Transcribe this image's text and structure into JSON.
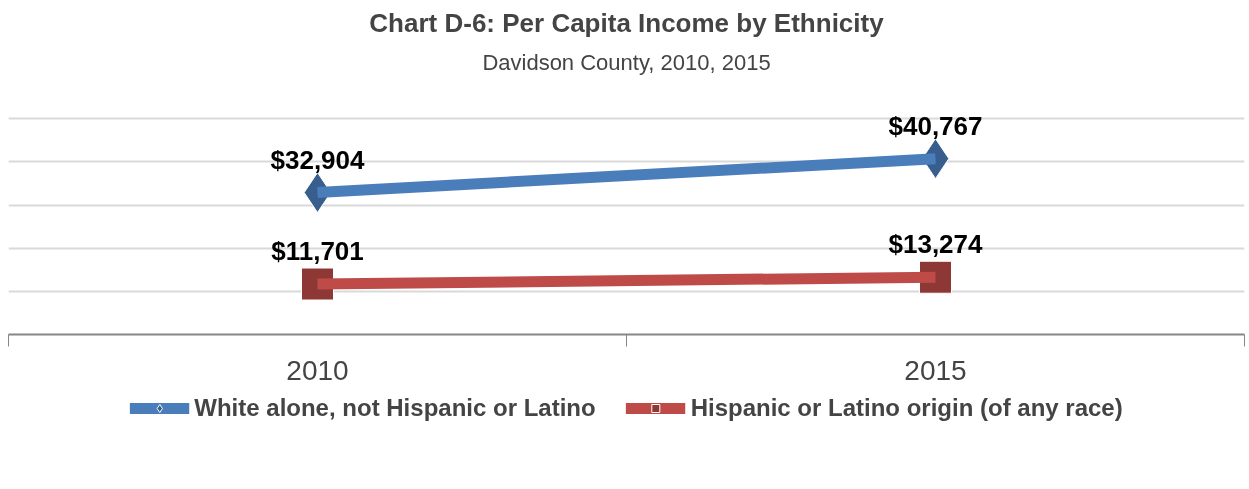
{
  "chart_data": {
    "type": "line",
    "title": "Chart D-6: Per Capita Income by Ethnicity",
    "subtitle": "Davidson County, 2010, 2015",
    "categories": [
      "2010",
      "2015"
    ],
    "series": [
      {
        "name": "White alone, not Hispanic or Latino",
        "color": "#4a7ebb",
        "marker": "diamond",
        "values": [
          32904,
          40767
        ],
        "value_labels": [
          "$32,904",
          "$40,767"
        ]
      },
      {
        "name": "Hispanic or Latino origin (of any race)",
        "color": "#be4b48",
        "marker": "square",
        "values": [
          11701,
          13274
        ],
        "value_labels": [
          "$11,701",
          "$13,274"
        ]
      }
    ],
    "yticks": [
      {
        "value": 0,
        "label": null
      },
      {
        "value": 10000,
        "label": null
      },
      {
        "value": 20000,
        "label": null
      },
      {
        "value": 30000,
        "label": null
      },
      {
        "value": 40000,
        "label": null
      },
      {
        "value": 50000,
        "label": null
      }
    ],
    "tick_labels": "x",
    "grid": "y",
    "legend": "bottom",
    "line_style": "solid"
  }
}
